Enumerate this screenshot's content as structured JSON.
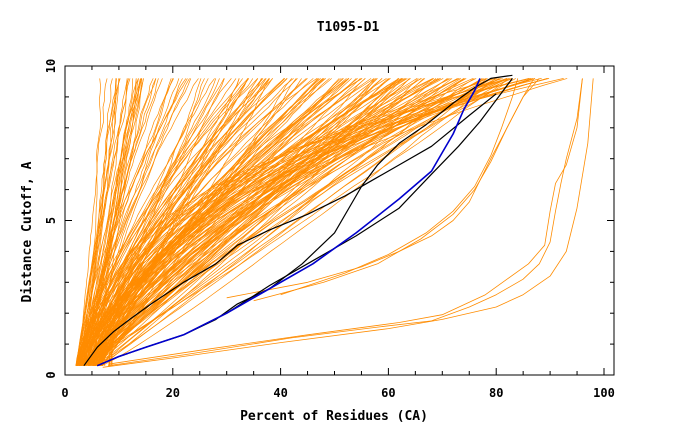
{
  "chart_data": {
    "type": "line",
    "title": "T1095-D1",
    "xlabel": "Percent of Residues (CA)",
    "ylabel": "Distance Cutoff, A",
    "xlim": [
      0,
      102
    ],
    "ylim": [
      0,
      10
    ],
    "xticks": [
      "0",
      "20",
      "40",
      "60",
      "80",
      "100"
    ],
    "yticks": [
      "0",
      "5",
      "10"
    ],
    "grid": false,
    "colors": {
      "bundle": "#ff8c00",
      "reference": "#000000",
      "highlight": "#0000cd"
    },
    "series": [
      {
        "role": "bundle",
        "color": "#ff8c00",
        "count": 200,
        "x": [
          2.5,
          5,
          8,
          12,
          18,
          25,
          35,
          48,
          60,
          72,
          80,
          84
        ],
        "y": [
          0.3,
          0.8,
          1.4,
          2.2,
          3.2,
          4.2,
          5.3,
          6.5,
          7.6,
          8.6,
          9.2,
          9.6
        ]
      },
      {
        "role": "reference",
        "color": "#000000",
        "x": [
          3.5,
          6,
          9,
          12,
          16,
          22,
          28,
          32,
          38,
          45,
          52,
          57,
          62,
          68,
          75,
          80
        ],
        "y": [
          0.3,
          0.9,
          1.4,
          1.8,
          2.3,
          3.0,
          3.6,
          4.2,
          4.7,
          5.2,
          5.8,
          6.3,
          6.8,
          7.4,
          8.4,
          9.1
        ]
      },
      {
        "role": "reference",
        "color": "#000000",
        "x": [
          6,
          10,
          15,
          22,
          28,
          32,
          38,
          44,
          50,
          55,
          58,
          62,
          67,
          72,
          76,
          79,
          83
        ],
        "y": [
          0.3,
          0.6,
          0.9,
          1.3,
          1.8,
          2.3,
          2.8,
          3.6,
          4.6,
          6.1,
          6.8,
          7.5,
          8.1,
          8.8,
          9.3,
          9.6,
          9.7
        ]
      },
      {
        "role": "reference",
        "color": "#000000",
        "x": [
          6,
          10,
          15,
          22,
          30,
          38,
          46,
          54,
          62,
          68,
          73,
          77,
          80,
          83
        ],
        "y": [
          0.3,
          0.6,
          0.9,
          1.3,
          2.0,
          2.9,
          3.7,
          4.5,
          5.4,
          6.5,
          7.4,
          8.2,
          8.9,
          9.6
        ]
      },
      {
        "role": "highlight",
        "color": "#0000cd",
        "x": [
          6,
          10,
          15,
          22,
          30,
          38,
          46,
          54,
          62,
          68,
          70,
          72,
          74,
          76,
          77
        ],
        "y": [
          0.3,
          0.6,
          0.9,
          1.3,
          2.0,
          2.8,
          3.6,
          4.6,
          5.7,
          6.6,
          7.2,
          7.8,
          8.6,
          9.2,
          9.6
        ]
      }
    ]
  }
}
